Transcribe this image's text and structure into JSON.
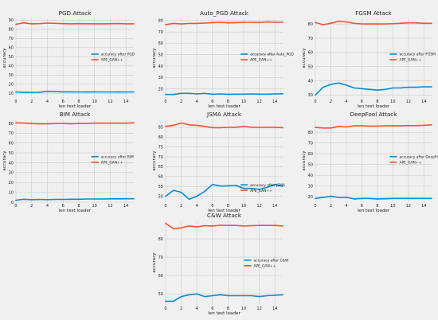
{
  "colors": {
    "background": "#f0f0f0",
    "grid": "#cbcbcb",
    "text": "#222222",
    "attack_series": "#008fd5",
    "ape_series": "#fc4f30"
  },
  "chart_data": [
    {
      "type": "line",
      "title": "PGD Attack",
      "xlabel": "len test loader",
      "ylabel": "accuracy",
      "xlim": [
        0,
        15
      ],
      "ylim": [
        5,
        92
      ],
      "xticks": [
        0,
        2,
        4,
        6,
        8,
        10,
        12,
        14
      ],
      "yticks": [
        10,
        20,
        30,
        40,
        50,
        60,
        70,
        80,
        90
      ],
      "x": [
        0,
        1,
        2,
        3,
        4,
        5,
        6,
        7,
        8,
        9,
        10,
        11,
        12,
        13,
        14,
        15
      ],
      "grid": true,
      "legend_position": "center-right",
      "series": [
        {
          "name": "accuracy after PGD",
          "color": "#008fd5",
          "values": [
            11.5,
            11,
            11,
            11.2,
            12.2,
            12,
            11.6,
            11.6,
            11.5,
            11.4,
            11.6,
            11.5,
            11.5,
            11.4,
            11.5,
            11.5
          ]
        },
        {
          "name": "APE_GAN++",
          "color": "#fc4f30",
          "values": [
            85.5,
            87,
            86,
            86.2,
            86.8,
            86.5,
            86.2,
            86,
            86.2,
            86.1,
            86,
            86,
            86.1,
            86.3,
            86,
            86
          ]
        }
      ]
    },
    {
      "type": "line",
      "title": "Auto_PGD Attack",
      "xlabel": "len test loader",
      "ylabel": "accuracy",
      "xlim": [
        0,
        15
      ],
      "ylim": [
        12,
        82
      ],
      "xticks": [
        0,
        2,
        4,
        6,
        8,
        10,
        12,
        14
      ],
      "yticks": [
        20,
        30,
        40,
        50,
        60,
        70,
        80
      ],
      "x": [
        0,
        1,
        2,
        3,
        4,
        5,
        6,
        7,
        8,
        9,
        10,
        11,
        12,
        13,
        14,
        15
      ],
      "grid": true,
      "legend_position": "center-right",
      "series": [
        {
          "name": "accuracy after Auto_PGD",
          "color": "#008fd5",
          "values": [
            15,
            15,
            16,
            16,
            15.5,
            16,
            15.2,
            15.5,
            15.2,
            15.3,
            15.3,
            15.5,
            15.3,
            15.3,
            15.5,
            15.6
          ]
        },
        {
          "name": "APE_GAN++",
          "color": "#fc4f30",
          "values": [
            76.5,
            77.5,
            77,
            77.5,
            77.5,
            77.8,
            78.2,
            78.5,
            78,
            78.2,
            78.5,
            78.5,
            78.3,
            78.8,
            78.5,
            78.5
          ]
        }
      ]
    },
    {
      "type": "line",
      "title": "FGSM Attack",
      "xlabel": "len test loader",
      "ylabel": "accuracy",
      "xlim": [
        0,
        15
      ],
      "ylim": [
        28,
        84
      ],
      "xticks": [
        0,
        2,
        4,
        6,
        8,
        10,
        12,
        14
      ],
      "yticks": [
        30,
        40,
        50,
        60,
        70,
        80
      ],
      "x": [
        0,
        1,
        2,
        3,
        4,
        5,
        6,
        7,
        8,
        9,
        10,
        11,
        12,
        13,
        14,
        15
      ],
      "grid": true,
      "legend_position": "center-right",
      "series": [
        {
          "name": "accuracy after FGSM",
          "color": "#008fd5",
          "values": [
            30,
            35.5,
            37.5,
            38.5,
            37,
            35,
            34.5,
            34,
            33.5,
            34,
            35,
            35,
            35.5,
            35.5,
            35.8,
            35.8
          ]
        },
        {
          "name": "APE_GAN++",
          "color": "#fc4f30",
          "values": [
            81,
            79.5,
            80.5,
            82,
            81.5,
            80.5,
            80,
            80,
            80,
            80,
            80.2,
            80.5,
            80.8,
            80.8,
            80.5,
            80.5
          ]
        }
      ]
    },
    {
      "type": "line",
      "title": "BIM Attack",
      "xlabel": "len test loader",
      "ylabel": "accuracy",
      "xlim": [
        0,
        15
      ],
      "ylim": [
        0,
        84
      ],
      "xticks": [
        0,
        2,
        4,
        6,
        8,
        10,
        12,
        14
      ],
      "yticks": [
        0,
        10,
        20,
        30,
        40,
        50,
        60,
        70,
        80
      ],
      "x": [
        0,
        1,
        2,
        3,
        4,
        5,
        6,
        7,
        8,
        9,
        10,
        11,
        12,
        13,
        14,
        15
      ],
      "grid": true,
      "legend_position": "center-right",
      "series": [
        {
          "name": "accuracy after BIM",
          "color": "#008fd5",
          "values": [
            2,
            3,
            2.5,
            2.8,
            2.6,
            2.8,
            2.8,
            3,
            3,
            3.2,
            3.2,
            3.2,
            3.4,
            3.4,
            3.5,
            3.5
          ]
        },
        {
          "name": "APE_GAN++",
          "color": "#fc4f30",
          "values": [
            80.5,
            80.3,
            79.8,
            79.5,
            79.5,
            79.8,
            79.8,
            79.6,
            79.8,
            79.8,
            80.2,
            80.2,
            80.2,
            80.2,
            80.2,
            80.5
          ]
        }
      ]
    },
    {
      "type": "line",
      "title": "JSMA Attack",
      "xlabel": "len test loader",
      "ylabel": "accuracy",
      "xlim": [
        0,
        15
      ],
      "ylim": [
        47,
        89
      ],
      "xticks": [
        0,
        2,
        4,
        6,
        8,
        10,
        12,
        14
      ],
      "yticks": [
        50,
        55,
        60,
        65,
        70,
        75,
        80,
        85
      ],
      "x": [
        0,
        1,
        2,
        3,
        4,
        5,
        6,
        7,
        8,
        9,
        10,
        11,
        12,
        13,
        14,
        15
      ],
      "grid": true,
      "legend_position": "lower-right",
      "series": [
        {
          "name": "accuracy after JSMA",
          "color": "#008fd5",
          "values": [
            50,
            53,
            52,
            48.5,
            50,
            52.5,
            56,
            55.2,
            55.3,
            55.5,
            54,
            54,
            53.5,
            54.5,
            56,
            55
          ]
        },
        {
          "name": "APE_GAN++",
          "color": "#fc4f30",
          "values": [
            85.5,
            86,
            87.2,
            86.2,
            86,
            85.5,
            84.8,
            84.8,
            85,
            85,
            85.5,
            85,
            85,
            85,
            85,
            84.8
          ]
        }
      ]
    },
    {
      "type": "line",
      "title": "DeepFool Attack",
      "xlabel": "len test loader",
      "ylabel": "accuracy",
      "xlim": [
        0,
        15
      ],
      "ylim": [
        15,
        92
      ],
      "xticks": [
        0,
        2,
        4,
        6,
        8,
        10,
        12,
        14
      ],
      "yticks": [
        20,
        30,
        40,
        50,
        60,
        70,
        80
      ],
      "x": [
        0,
        1,
        2,
        3,
        4,
        5,
        6,
        7,
        8,
        9,
        10,
        11,
        12,
        13,
        14,
        15
      ],
      "grid": true,
      "legend_position": "center-right",
      "series": [
        {
          "name": "accuracy after DeepFool",
          "color": "#008fd5",
          "values": [
            18.5,
            19.5,
            20.5,
            19.5,
            19.5,
            18,
            18.5,
            18.5,
            18,
            18.2,
            18.5,
            18.5,
            18.5,
            18.5,
            18.5,
            18.5
          ]
        },
        {
          "name": "APE_GAN++",
          "color": "#fc4f30",
          "values": [
            84.5,
            84,
            84,
            85.5,
            85,
            86,
            86,
            85.8,
            85.8,
            86,
            86,
            86,
            86.2,
            86.2,
            86.5,
            87
          ]
        }
      ]
    },
    {
      "type": "line",
      "title": "C&W Attack",
      "xlabel": "len test loader",
      "ylabel": "accuracy",
      "xlim": [
        0,
        15
      ],
      "ylim": [
        44,
        90
      ],
      "xticks": [
        0,
        2,
        4,
        6,
        8,
        10,
        12,
        14
      ],
      "yticks": [
        50,
        60,
        70,
        80
      ],
      "x": [
        0,
        1,
        2,
        3,
        4,
        5,
        6,
        7,
        8,
        9,
        10,
        11,
        12,
        13,
        14,
        15
      ],
      "grid": true,
      "legend_position": "center-right",
      "series": [
        {
          "name": "accuracy after C&W",
          "color": "#008fd5",
          "values": [
            46,
            46,
            48.5,
            49.5,
            50,
            48.5,
            49,
            49.5,
            49,
            49,
            49,
            49,
            48.5,
            49,
            49.2,
            49.5
          ]
        },
        {
          "name": "APE_GAN++",
          "color": "#fc4f30",
          "values": [
            88.5,
            85.5,
            86,
            87,
            86.5,
            87.2,
            87,
            87.4,
            87.3,
            87.3,
            87,
            87.2,
            87.3,
            87.3,
            87.3,
            87
          ]
        }
      ]
    }
  ]
}
